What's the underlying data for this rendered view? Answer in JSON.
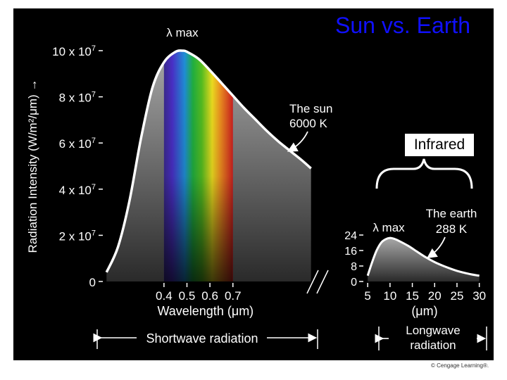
{
  "title": "Sun vs. Earth",
  "infrared_label": "Infrared",
  "credit": "© Cengage Learning®.",
  "colors": {
    "background": "#000000",
    "curve": "#ffffff",
    "title": "#1010ff",
    "fill": "#777777"
  },
  "chart_data": [
    {
      "type": "area",
      "series_label_line1": "The sun",
      "series_label_line2": "6000 K",
      "peak_label": "λ max",
      "ylabel": "Radiation Intensity (W/m²/μm) →",
      "xlabel": "Wavelength (μm)",
      "y_ticks": [
        {
          "value": 0,
          "label": "0"
        },
        {
          "value": 20000000,
          "label": "2 x 10",
          "exp": "7"
        },
        {
          "value": 40000000,
          "label": "4 x 10",
          "exp": "7"
        },
        {
          "value": 60000000,
          "label": "6 x 10",
          "exp": "7"
        },
        {
          "value": 80000000,
          "label": "8 x 10",
          "exp": "7"
        },
        {
          "value": 100000000,
          "label": "10 x 10",
          "exp": "7"
        }
      ],
      "x_ticks": [
        {
          "value": 0.4,
          "label": "0.4"
        },
        {
          "value": 0.5,
          "label": "0.5"
        },
        {
          "value": 0.6,
          "label": "0.6"
        },
        {
          "value": 0.7,
          "label": "0.7"
        }
      ],
      "ylim": [
        0,
        100000000
      ],
      "xlim": [
        0.14,
        1.05
      ],
      "x": [
        0.15,
        0.2,
        0.25,
        0.3,
        0.35,
        0.4,
        0.45,
        0.48,
        0.5,
        0.55,
        0.6,
        0.65,
        0.7,
        0.75,
        0.8,
        0.85,
        0.9,
        0.95,
        1.0,
        1.04
      ],
      "y": [
        4000000,
        15000000,
        35000000,
        62000000,
        84000000,
        95000000,
        99500000,
        100000000,
        99500000,
        96500000,
        91500000,
        86000000,
        80500000,
        75000000,
        70000000,
        65000000,
        60500000,
        56500000,
        52500000,
        49000000
      ],
      "spectrum_band": [
        0.4,
        0.7
      ],
      "band_label": "Shortwave radiation"
    },
    {
      "type": "area",
      "series_label_line1": "The earth",
      "series_label_line2": "288 K",
      "peak_label": "λ max",
      "xlabel": "(μm)",
      "y_ticks": [
        {
          "value": 0,
          "label": "0"
        },
        {
          "value": 8,
          "label": "8"
        },
        {
          "value": 16,
          "label": "16"
        },
        {
          "value": 24,
          "label": "24"
        }
      ],
      "x_ticks": [
        {
          "value": 5,
          "label": "5"
        },
        {
          "value": 10,
          "label": "10"
        },
        {
          "value": 15,
          "label": "15"
        },
        {
          "value": 20,
          "label": "20"
        },
        {
          "value": 25,
          "label": "25"
        },
        {
          "value": 30,
          "label": "30"
        }
      ],
      "ylim": [
        0,
        24
      ],
      "xlim": [
        4.5,
        31
      ],
      "x": [
        5,
        6,
        7,
        8,
        9,
        10,
        11,
        12,
        14,
        16,
        18,
        20,
        22,
        25,
        28,
        30
      ],
      "y": [
        3,
        10,
        16,
        20,
        21.8,
        22.5,
        22,
        21,
        18.5,
        15.5,
        12.5,
        10,
        8,
        5.5,
        3.8,
        3
      ],
      "band_label_line1": "Longwave",
      "band_label_line2": "radiation"
    }
  ]
}
